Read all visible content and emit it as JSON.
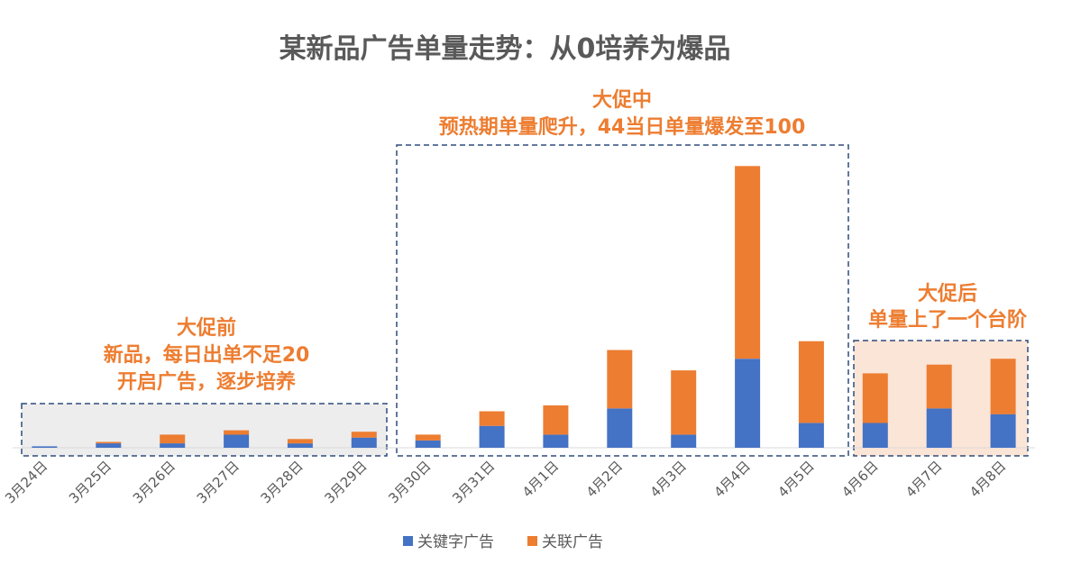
{
  "chart_data": {
    "type": "bar",
    "stacked": true,
    "title": "某新品广告单量走势：从0培养为爆品",
    "categories": [
      "3月24日",
      "3月25日",
      "3月26日",
      "3月27日",
      "3月28日",
      "3月29日",
      "3月30日",
      "3月31日",
      "4月1日",
      "4月2日",
      "4月3日",
      "4月4日",
      "4月5日",
      "4月6日",
      "4月7日",
      "4月8日"
    ],
    "series": [
      {
        "name": "关键字广告",
        "color": "#4472C4",
        "values": [
          0.5,
          1.5,
          1.5,
          4.5,
          1.5,
          3.5,
          2.5,
          7.5,
          4.5,
          13.5,
          4.5,
          30.5,
          8.5,
          8.5,
          13.5,
          11.5
        ]
      },
      {
        "name": "关联广告",
        "color": "#ED7D31",
        "values": [
          0,
          0.5,
          3,
          1.5,
          1.5,
          2,
          2,
          5,
          10,
          20,
          22,
          66,
          28,
          17,
          15,
          19
        ]
      }
    ],
    "ylim": [
      0,
      100
    ],
    "grid": false,
    "legend": "bottom",
    "annotations": [
      {
        "id": "pre",
        "lines": [
          "大促前",
          "新品，每日出单不足20",
          "开启广告，逐步培养"
        ]
      },
      {
        "id": "during",
        "lines": [
          "大促中",
          "预热期单量爬升，44当日单量爆发至100"
        ]
      },
      {
        "id": "post",
        "lines": [
          "大促后",
          "单量上了一个台阶"
        ]
      }
    ]
  }
}
